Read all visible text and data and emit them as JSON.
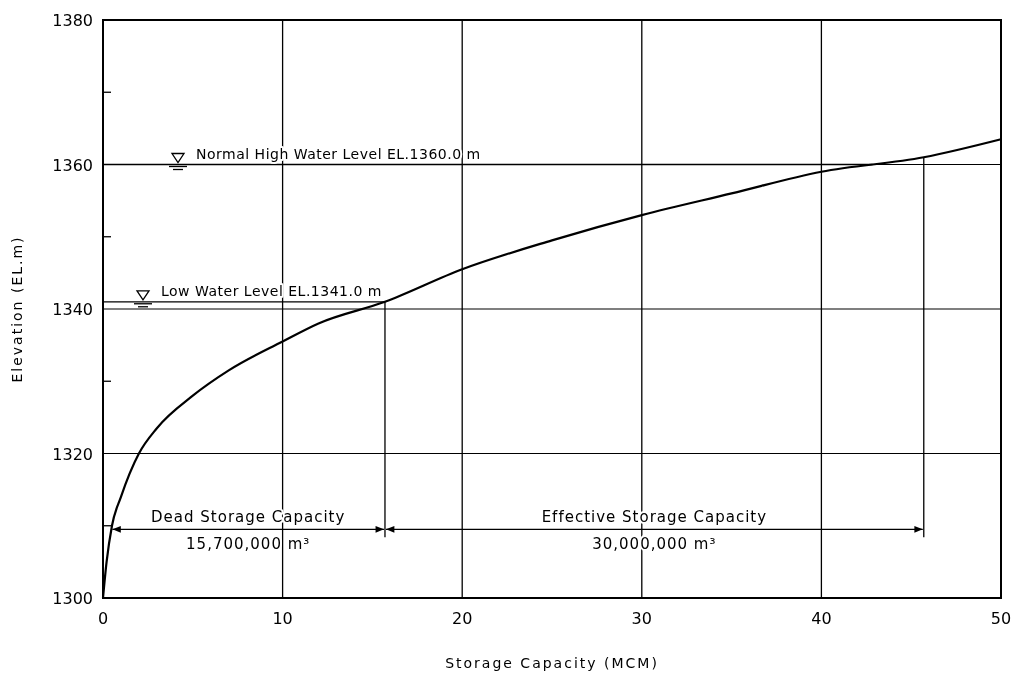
{
  "chart_data": {
    "type": "line",
    "xlabel": "Storage Capacity (MCM)",
    "ylabel": "Elevation (EL.m)",
    "x": [
      0,
      0.2,
      0.5,
      1,
      2,
      3,
      5,
      7,
      10,
      12,
      15.7,
      20,
      25,
      30,
      35,
      40,
      45.7,
      50
    ],
    "series": [
      {
        "color": "#000000",
        "values": [
          1300,
          1305,
          1310,
          1314,
          1320,
          1323.5,
          1328,
          1331.5,
          1335.5,
          1338,
          1341,
          1345.5,
          1349.5,
          1353,
          1356,
          1359,
          1361,
          1363.5
        ]
      }
    ],
    "xlim": [
      0,
      50
    ],
    "xticks": [
      0,
      10,
      20,
      30,
      40,
      50
    ],
    "ylim": [
      1300,
      1380
    ],
    "yticks": [
      1300,
      {
        "value": 1310,
        "label": null
      },
      1320,
      {
        "value": 1330,
        "label": null
      },
      1340,
      {
        "value": 1350,
        "label": null
      },
      1360,
      {
        "value": 1370,
        "label": null
      },
      1380
    ],
    "grid": true,
    "marker": "none",
    "line_style": "solid",
    "ref_lines": [
      {
        "axis": "y",
        "value": 1360,
        "label": "Normal High Water Level EL.1360.0 m"
      },
      {
        "axis": "y",
        "value": 1341,
        "label": "Low Water Level EL.1341.0 m"
      },
      {
        "axis": "x",
        "value": 15.7
      },
      {
        "axis": "x",
        "value": 45.7
      }
    ],
    "annotations": [
      "Dead Storage Capacity",
      "15,700,000 m³",
      "Effective Storage Capacity",
      "30,000,000 m³"
    ]
  }
}
